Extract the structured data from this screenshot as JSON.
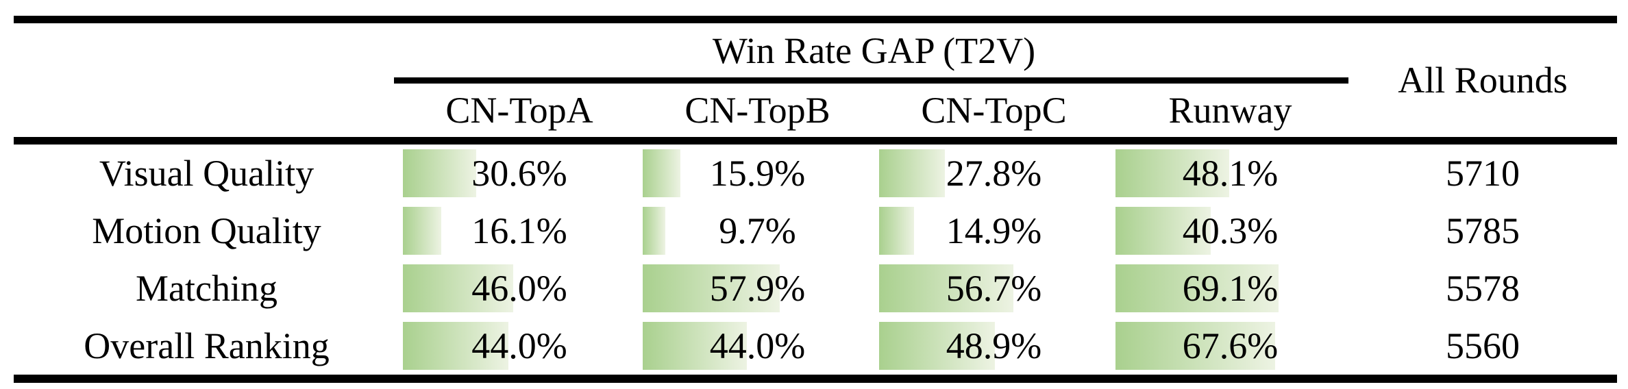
{
  "table": {
    "group_header": "Win Rate GAP (T2V)",
    "all_rounds_header": "All Rounds",
    "columns": [
      "CN-TopA",
      "CN-TopB",
      "CN-TopC",
      "Runway"
    ],
    "rows": [
      {
        "label": "Visual Quality",
        "cells": [
          "30.6%",
          "15.9%",
          "27.8%",
          "48.1%"
        ],
        "rounds": "5710"
      },
      {
        "label": "Motion Quality",
        "cells": [
          "16.1%",
          "9.7%",
          "14.9%",
          "40.3%"
        ],
        "rounds": "5785"
      },
      {
        "label": "Matching",
        "cells": [
          "46.0%",
          "57.9%",
          "56.7%",
          "69.1%"
        ],
        "rounds": "5578"
      },
      {
        "label": "Overall Ranking",
        "cells": [
          "44.0%",
          "44.0%",
          "48.9%",
          "67.6%"
        ],
        "rounds": "5560"
      }
    ]
  },
  "colors": {
    "bar_gradient_start": "#a9d08e",
    "bar_gradient_end": "#edf3e3",
    "rule": "#000000",
    "text": "#000000"
  }
}
